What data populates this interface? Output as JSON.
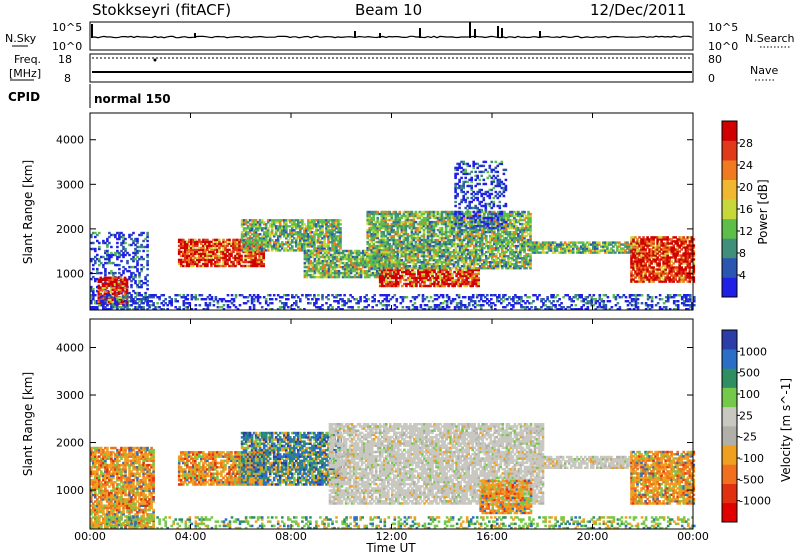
{
  "header": {
    "station": "Stokkseyri (fitACF)",
    "beam": "Beam 10",
    "date": "12/Dec/2011"
  },
  "status_panels": {
    "nsky_label": "N.Sky",
    "nsky_ticks": [
      "10^5",
      "10^0"
    ],
    "nsearch_label": "N.Search",
    "nsearch_ticks": [
      "10^5",
      "10^0"
    ],
    "freq_label_line1": "Freq.",
    "freq_label_line2": "[MHz]",
    "freq_ticks": [
      "18",
      "8"
    ],
    "nave_label": "Nave",
    "nave_ticks": [
      "80",
      "0"
    ],
    "cpid_label": "CPID",
    "cpid_value": "normal 150"
  },
  "colors": {
    "power_scale": [
      "#1f1fe6",
      "#2a55b0",
      "#3f8f7a",
      "#5dbf4a",
      "#c8d83a",
      "#f0b830",
      "#f07a20",
      "#e03a1a",
      "#d00000"
    ],
    "velocity_scale": [
      "#2c3da8",
      "#2a6ec6",
      "#2f8f62",
      "#74c84a",
      "#c8c8c0",
      "#b0b0a8",
      "#f0a020",
      "#f07020",
      "#e03010",
      "#e00000"
    ]
  },
  "chart_data": [
    {
      "type": "heatmap",
      "title": "",
      "xlabel": "Time UT",
      "ylabel": "Slant Range [km]",
      "x_ticks": [
        "00:00",
        "04:00",
        "08:00",
        "12:00",
        "16:00",
        "20:00",
        "00:00"
      ],
      "y_ticks": [
        1000,
        2000,
        3000,
        4000
      ],
      "xlim_hours": [
        0,
        24
      ],
      "ylim_km": [
        180,
        4600
      ],
      "colorbar_label": "Power [dB]",
      "colorbar_ticks": [
        4,
        8,
        12,
        16,
        20,
        24,
        28
      ],
      "echo_regions": [
        {
          "t0": 0.0,
          "t1": 2.3,
          "r0": 180,
          "r1": 1900,
          "level": "low"
        },
        {
          "t0": 0.3,
          "t1": 1.5,
          "r0": 300,
          "r1": 900,
          "level": "high"
        },
        {
          "t0": 3.5,
          "t1": 6.9,
          "r0": 1150,
          "r1": 1760,
          "level": "high"
        },
        {
          "t0": 6.0,
          "t1": 10.0,
          "r0": 1500,
          "r1": 2200,
          "level": "mid"
        },
        {
          "t0": 8.5,
          "t1": 12.0,
          "r0": 900,
          "r1": 1500,
          "level": "mid"
        },
        {
          "t0": 11.5,
          "t1": 15.5,
          "r0": 700,
          "r1": 1100,
          "level": "high"
        },
        {
          "t0": 11.0,
          "t1": 17.5,
          "r0": 1100,
          "r1": 2400,
          "level": "mid"
        },
        {
          "t0": 14.5,
          "t1": 16.5,
          "r0": 2000,
          "r1": 3500,
          "level": "low"
        },
        {
          "t0": 17.5,
          "t1": 22.0,
          "r0": 1450,
          "r1": 1720,
          "level": "mid"
        },
        {
          "t0": 21.5,
          "t1": 24.0,
          "r0": 800,
          "r1": 1800,
          "level": "high"
        },
        {
          "t0": 0.0,
          "t1": 24.0,
          "r0": 180,
          "r1": 500,
          "level": "low"
        }
      ]
    },
    {
      "type": "heatmap",
      "title": "",
      "xlabel": "Time UT",
      "ylabel": "Slant Range [km]",
      "x_ticks": [
        "00:00",
        "04:00",
        "08:00",
        "12:00",
        "16:00",
        "20:00",
        "00:00"
      ],
      "y_ticks": [
        1000,
        2000,
        3000,
        4000
      ],
      "xlim_hours": [
        0,
        24
      ],
      "ylim_km": [
        180,
        4600
      ],
      "colorbar_label": "Velocity [m s^-1]",
      "colorbar_ticks": [
        1000,
        500,
        100,
        25,
        -25,
        -100,
        -500,
        -1000
      ],
      "echo_regions": [
        {
          "t0": 0.0,
          "t1": 2.5,
          "r0": 200,
          "r1": 1900,
          "level": "neg"
        },
        {
          "t0": 3.5,
          "t1": 7.0,
          "r0": 1100,
          "r1": 1800,
          "level": "neg"
        },
        {
          "t0": 6.0,
          "t1": 10.0,
          "r0": 1100,
          "r1": 2200,
          "level": "mixed"
        },
        {
          "t0": 9.5,
          "t1": 18.0,
          "r0": 700,
          "r1": 2400,
          "level": "ground"
        },
        {
          "t0": 17.5,
          "t1": 22.0,
          "r0": 1450,
          "r1": 1720,
          "level": "ground"
        },
        {
          "t0": 15.5,
          "t1": 17.5,
          "r0": 500,
          "r1": 1200,
          "level": "neg"
        },
        {
          "t0": 21.5,
          "t1": 24.0,
          "r0": 700,
          "r1": 1800,
          "level": "neg"
        },
        {
          "t0": 0.0,
          "t1": 24.0,
          "r0": 180,
          "r1": 450,
          "level": "pos"
        }
      ]
    }
  ]
}
